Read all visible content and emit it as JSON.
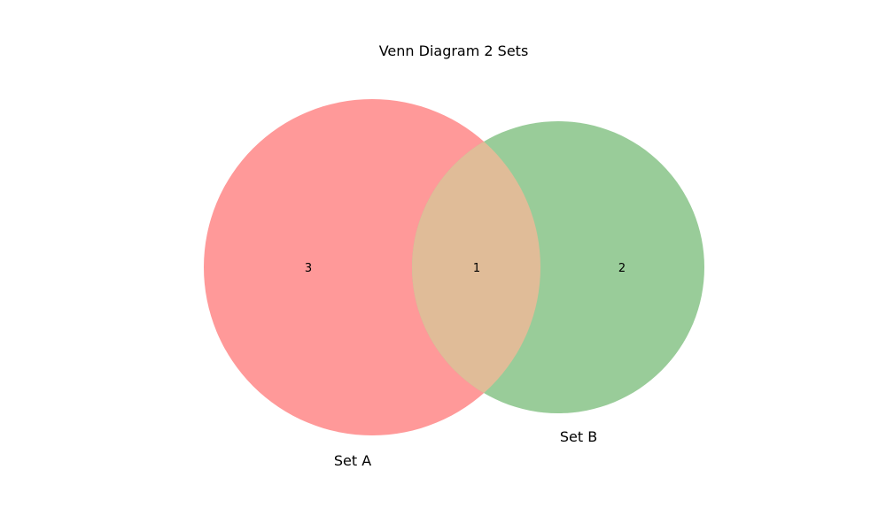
{
  "title": "Venn Diagram 2 Sets",
  "sets": {
    "a": {
      "label": "Set A",
      "color": "#ff9999"
    },
    "b": {
      "label": "Set B",
      "color": "#99cc99"
    }
  },
  "overlap_color": "#e0bc98",
  "regions": {
    "a_only": "3",
    "ab": "1",
    "b_only": "2"
  }
}
